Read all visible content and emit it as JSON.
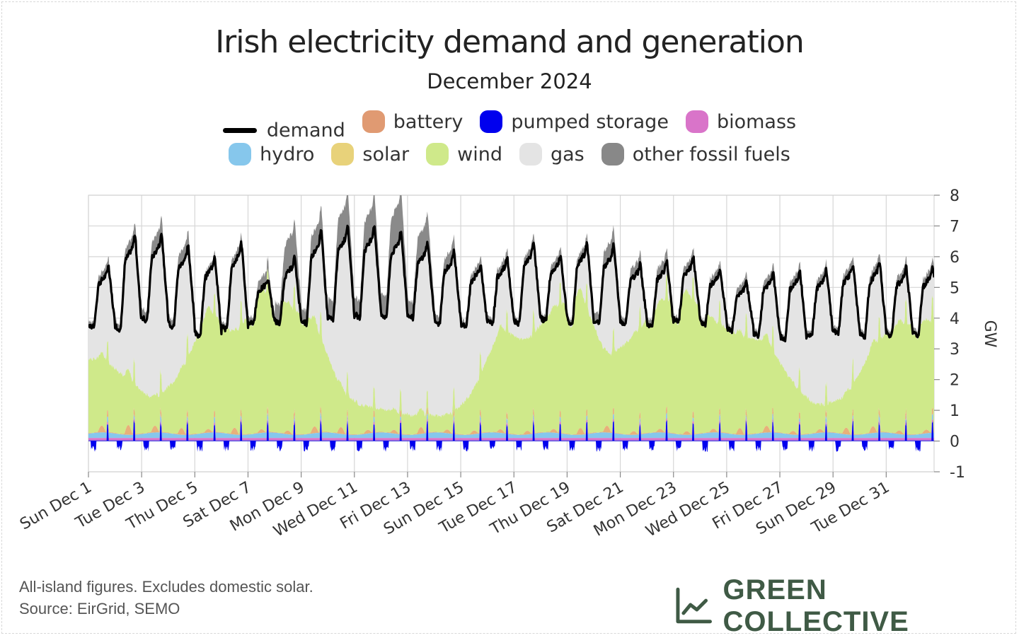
{
  "header": {
    "title": "Irish electricity demand and generation",
    "subtitle": "December 2024"
  },
  "legend": {
    "row1": [
      {
        "key": "demand",
        "label": "demand",
        "color": "#000000",
        "kind": "line"
      },
      {
        "key": "battery",
        "label": "battery",
        "color": "#e09a72",
        "kind": "area"
      },
      {
        "key": "pumped",
        "label": "pumped storage",
        "color": "#0000ee",
        "kind": "area"
      },
      {
        "key": "biomass",
        "label": "biomass",
        "color": "#d974c9",
        "kind": "area"
      }
    ],
    "row2": [
      {
        "key": "hydro",
        "label": "hydro",
        "color": "#86c7ec",
        "kind": "area"
      },
      {
        "key": "solar",
        "label": "solar",
        "color": "#e8d27a",
        "kind": "area"
      },
      {
        "key": "wind",
        "label": "wind",
        "color": "#cfe98a",
        "kind": "area"
      },
      {
        "key": "gas",
        "label": "gas",
        "color": "#e4e4e4",
        "kind": "area"
      },
      {
        "key": "other",
        "label": "other fossil fuels",
        "color": "#888888",
        "kind": "area"
      }
    ]
  },
  "chart_data": {
    "type": "area",
    "title": "Irish electricity demand and generation",
    "subtitle": "December 2024",
    "ylabel": "GW",
    "ylim": [
      -1,
      8
    ],
    "yticks": [
      -1,
      0,
      1,
      2,
      3,
      4,
      5,
      6,
      7,
      8
    ],
    "xlim": [
      "2024-12-01",
      "2025-01-01"
    ],
    "xticks": [
      "Sun Dec 1",
      "Tue Dec 3",
      "Thu Dec 5",
      "Sat Dec 7",
      "Mon Dec 9",
      "Wed Dec 11",
      "Fri Dec 13",
      "Sun Dec 15",
      "Tue Dec 17",
      "Thu Dec 19",
      "Sat Dec 21",
      "Mon Dec 23",
      "Wed Dec 25",
      "Fri Dec 27",
      "Sun Dec 29",
      "Tue Dec 31"
    ],
    "grid": true,
    "legend_position": "top",
    "days": [
      "Dec 1",
      "Dec 2",
      "Dec 3",
      "Dec 4",
      "Dec 5",
      "Dec 6",
      "Dec 7",
      "Dec 8",
      "Dec 9",
      "Dec 10",
      "Dec 11",
      "Dec 12",
      "Dec 13",
      "Dec 14",
      "Dec 15",
      "Dec 16",
      "Dec 17",
      "Dec 18",
      "Dec 19",
      "Dec 20",
      "Dec 21",
      "Dec 22",
      "Dec 23",
      "Dec 24",
      "Dec 25",
      "Dec 26",
      "Dec 27",
      "Dec 28",
      "Dec 29",
      "Dec 30",
      "Dec 31"
    ],
    "series": [
      {
        "name": "demand",
        "unit": "GW",
        "daily_min": [
          3.7,
          3.6,
          3.9,
          3.7,
          3.4,
          3.6,
          3.8,
          3.8,
          3.8,
          3.9,
          4.0,
          4.0,
          4.0,
          3.8,
          3.7,
          3.8,
          3.8,
          3.9,
          3.8,
          3.8,
          3.8,
          3.7,
          3.9,
          3.8,
          3.6,
          3.4,
          3.3,
          3.4,
          3.5,
          3.4,
          3.4
        ],
        "daily_max": [
          5.7,
          6.8,
          6.8,
          6.4,
          6.1,
          6.5,
          5.3,
          6.0,
          6.9,
          7.1,
          7.1,
          6.9,
          6.5,
          6.2,
          5.8,
          6.0,
          6.5,
          6.1,
          6.5,
          6.4,
          5.8,
          5.9,
          6.0,
          5.6,
          5.2,
          5.5,
          5.6,
          5.6,
          5.8,
          5.9,
          5.7
        ]
      },
      {
        "name": "wind",
        "unit": "GW",
        "daily_mean": [
          2.4,
          1.8,
          1.0,
          2.0,
          4.0,
          3.2,
          4.6,
          4.2,
          3.6,
          1.4,
          0.8,
          0.7,
          0.6,
          0.5,
          1.4,
          3.4,
          3.0,
          4.0,
          4.6,
          2.4,
          3.2,
          4.2,
          4.6,
          3.6,
          3.2,
          3.0,
          1.6,
          0.8,
          1.2,
          2.8,
          3.6
        ]
      },
      {
        "name": "gas",
        "unit": "GW",
        "note": "fills the stack up to demand"
      },
      {
        "name": "other fossil fuels",
        "unit": "GW",
        "daily_max": [
          0.3,
          0.4,
          0.6,
          0.5,
          0.2,
          0.3,
          0.4,
          1.2,
          0.8,
          1.2,
          1.1,
          1.4,
          1.0,
          0.5,
          0.3,
          0.3,
          0.3,
          0.3,
          0.3,
          0.6,
          0.4,
          0.4,
          0.3,
          0.3,
          0.3,
          0.3,
          0.3,
          0.3,
          0.3,
          0.3,
          0.3
        ]
      },
      {
        "name": "hydro",
        "unit": "GW",
        "typical": 0.15
      },
      {
        "name": "biomass",
        "unit": "GW",
        "typical": 0.08
      },
      {
        "name": "solar",
        "unit": "GW",
        "daily_peak": [
          0.2,
          0.3,
          0.2,
          0.2,
          0.1,
          0.2,
          0.1,
          0.1,
          0.2,
          0.2,
          0.1,
          0.1,
          0.2,
          0.1,
          0.1,
          0.1,
          0.1,
          0.1,
          0.2,
          0.2,
          0.1,
          0.1,
          0.1,
          0.1,
          0.2,
          0.2,
          0.1,
          0.1,
          0.2,
          0.2,
          0.1
        ]
      },
      {
        "name": "battery",
        "unit": "GW",
        "range": [
          -0.2,
          0.3
        ]
      },
      {
        "name": "pumped storage",
        "unit": "GW",
        "range": [
          -0.4,
          0.7
        ]
      }
    ]
  },
  "footer": {
    "note": "All-island figures. Excludes domestic solar.",
    "source": "Source: EirGrid, SEMO",
    "brand": "GREEN COLLECTIVE",
    "brand_icon": "line-chart-icon"
  }
}
